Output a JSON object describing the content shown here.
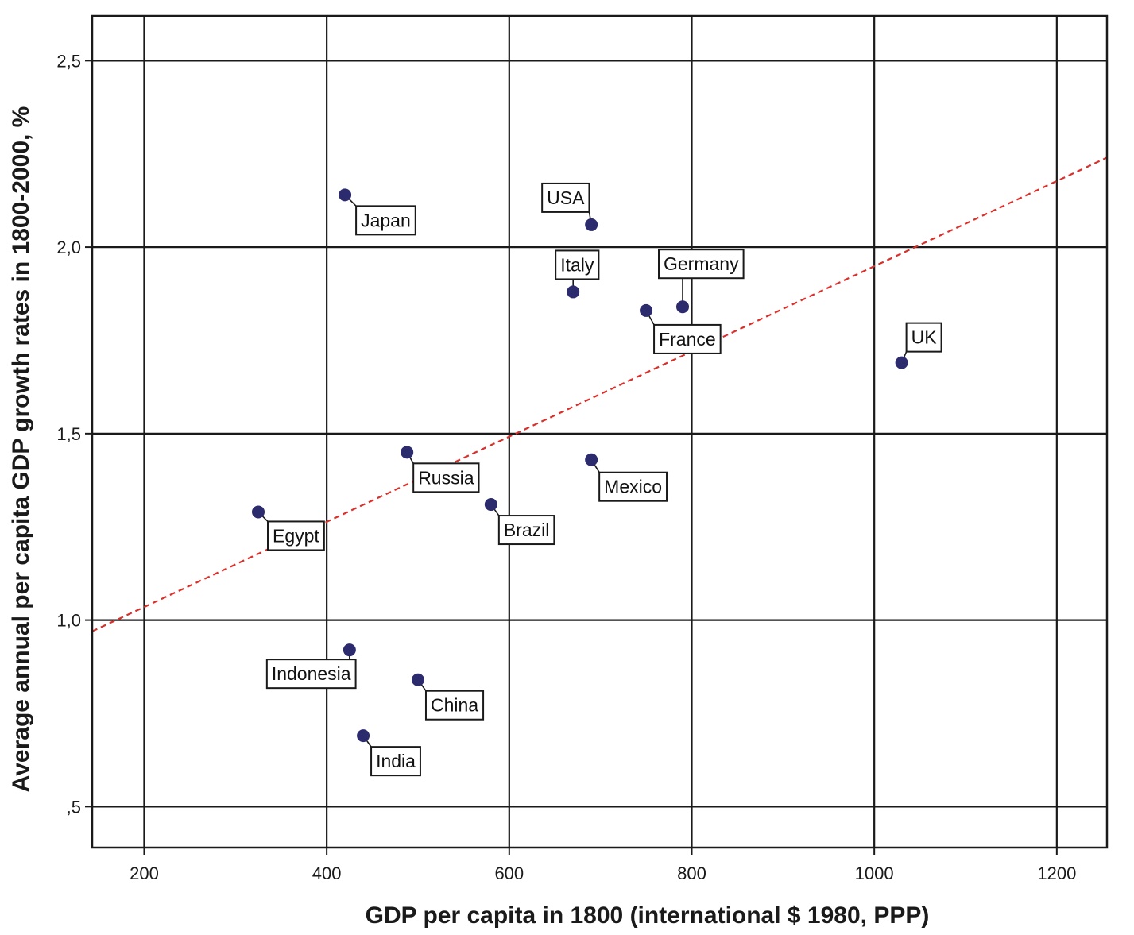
{
  "chart_data": {
    "type": "scatter",
    "title": "",
    "xlabel": "GDP per capita in 1800 (international $ 1980, PPP)",
    "ylabel": "Average annual per capita GDP growth rates in 1800-2000, %",
    "xlim": [
      143,
      1255
    ],
    "ylim": [
      0.39,
      2.62
    ],
    "x_ticks": [
      200,
      400,
      600,
      800,
      1000,
      1200
    ],
    "x_tick_labels": [
      "200",
      "400",
      "600",
      "800",
      "1000",
      "1200"
    ],
    "y_ticks": [
      0.5,
      1.0,
      1.5,
      2.0,
      2.5
    ],
    "y_tick_labels": [
      ",5",
      "1,0",
      "1,5",
      "2,0",
      "2,5"
    ],
    "grid": true,
    "point_color": "#2b2b6e",
    "trend_color": "#d9302b",
    "trendline": {
      "from": [
        143,
        0.97
      ],
      "to": [
        1255,
        2.24
      ]
    },
    "points": [
      {
        "label": "Japan",
        "x": 420,
        "y": 2.14
      },
      {
        "label": "USA",
        "x": 690,
        "y": 2.06
      },
      {
        "label": "Italy",
        "x": 670,
        "y": 1.88
      },
      {
        "label": "Germany",
        "x": 790,
        "y": 1.84
      },
      {
        "label": "France",
        "x": 750,
        "y": 1.83
      },
      {
        "label": "UK",
        "x": 1030,
        "y": 1.69
      },
      {
        "label": "Russia",
        "x": 488,
        "y": 1.45
      },
      {
        "label": "Mexico",
        "x": 690,
        "y": 1.43
      },
      {
        "label": "Brazil",
        "x": 580,
        "y": 1.31
      },
      {
        "label": "Egypt",
        "x": 325,
        "y": 1.29
      },
      {
        "label": "Indonesia",
        "x": 425,
        "y": 0.92
      },
      {
        "label": "China",
        "x": 500,
        "y": 0.84
      },
      {
        "label": "India",
        "x": 440,
        "y": 0.69
      }
    ]
  }
}
